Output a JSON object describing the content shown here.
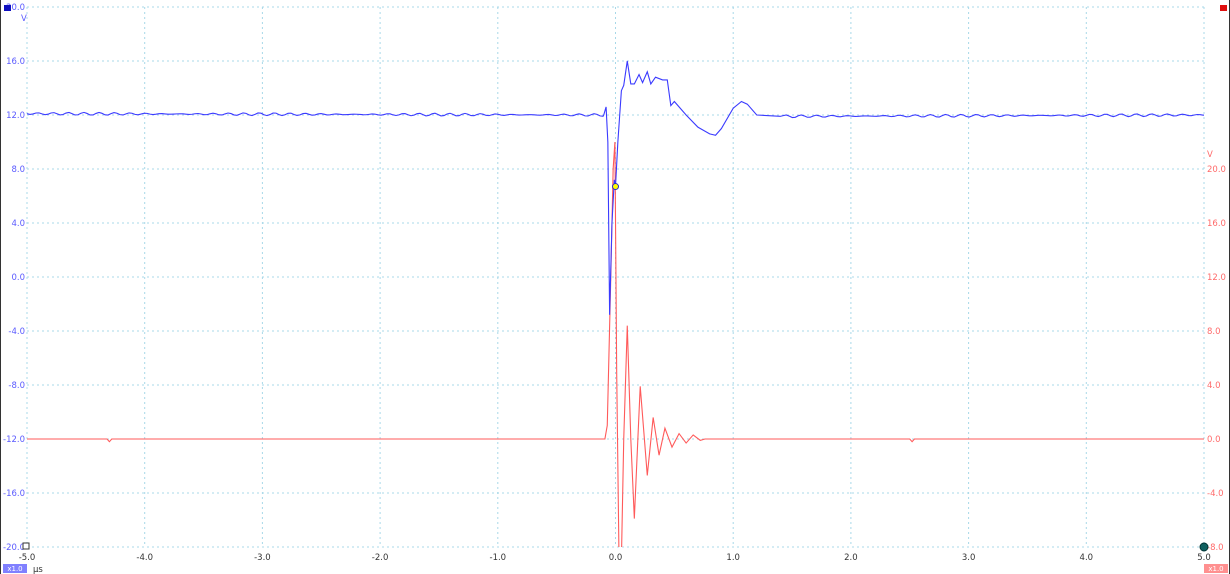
{
  "chart_data": {
    "type": "line",
    "x_unit": "µs",
    "xlim": [
      -5.0,
      5.0
    ],
    "x_ticks": [
      "-5.0",
      "-4.0",
      "-3.0",
      "-2.0",
      "-1.0",
      "0.0",
      "1.0",
      "2.0",
      "3.0",
      "4.0",
      "5.0"
    ],
    "grid": true,
    "axes": [
      {
        "side": "left",
        "unit": "V",
        "ylim": [
          -20,
          20
        ],
        "color": "#5a5aff",
        "ticks": [
          "20.0",
          "16.0",
          "12.0",
          "8.0",
          "4.0",
          "0.0",
          "-4.0",
          "-8.0",
          "-12.0",
          "-16.0",
          "-20.0"
        ],
        "zoom_badge": "x1.0"
      },
      {
        "side": "right",
        "unit": "V",
        "ylim": [
          -8,
          32
        ],
        "color": "#ff6a6a",
        "ticks": [
          "20.0",
          "16.0",
          "12.0",
          "8.0",
          "4.0",
          "0.0",
          "-4.0",
          "-8.0"
        ],
        "zoom_badge": "x1.0"
      }
    ],
    "series": [
      {
        "axis": "left",
        "color": "#3a3aff",
        "points": [
          [
            -5,
            12.1
          ],
          [
            -0.1,
            12
          ],
          [
            -0.08,
            12.6
          ],
          [
            -0.065,
            10
          ],
          [
            -0.05,
            -2.8
          ],
          [
            -0.03,
            4
          ],
          [
            -0.01,
            7.2
          ],
          [
            0,
            6.7
          ],
          [
            0.02,
            10
          ],
          [
            0.05,
            13.8
          ],
          [
            0.07,
            14.2
          ],
          [
            0.1,
            16
          ],
          [
            0.13,
            14.3
          ],
          [
            0.16,
            14.3
          ],
          [
            0.2,
            15
          ],
          [
            0.23,
            14.4
          ],
          [
            0.27,
            15.2
          ],
          [
            0.3,
            14.3
          ],
          [
            0.34,
            14.8
          ],
          [
            0.4,
            14.6
          ],
          [
            0.44,
            14.6
          ],
          [
            0.47,
            12.7
          ],
          [
            0.5,
            13
          ],
          [
            0.6,
            12
          ],
          [
            0.7,
            11.1
          ],
          [
            0.8,
            10.6
          ],
          [
            0.85,
            10.5
          ],
          [
            0.9,
            11
          ],
          [
            1.0,
            12.5
          ],
          [
            1.07,
            13
          ],
          [
            1.12,
            12.8
          ],
          [
            1.2,
            12
          ],
          [
            1.4,
            11.9
          ],
          [
            5,
            12
          ]
        ]
      },
      {
        "axis": "right",
        "color": "#ff5a5a",
        "points": [
          [
            -5,
            0
          ],
          [
            -4.32,
            0
          ],
          [
            -4.3,
            -0.2
          ],
          [
            -4.28,
            0
          ],
          [
            -0.09,
            0
          ],
          [
            -0.07,
            1
          ],
          [
            -0.04,
            12
          ],
          [
            -0.02,
            20
          ],
          [
            -0.005,
            22
          ],
          [
            0.01,
            5
          ],
          [
            0.03,
            -9
          ],
          [
            0.05,
            -9
          ],
          [
            0.07,
            0
          ],
          [
            0.1,
            8.4
          ],
          [
            0.13,
            0
          ],
          [
            0.16,
            -5.9
          ],
          [
            0.19,
            0
          ],
          [
            0.21,
            3.9
          ],
          [
            0.27,
            -2.7
          ],
          [
            0.32,
            1.6
          ],
          [
            0.37,
            -1.2
          ],
          [
            0.42,
            0.8
          ],
          [
            0.48,
            -0.6
          ],
          [
            0.54,
            0.4
          ],
          [
            0.6,
            -0.3
          ],
          [
            0.66,
            0.3
          ],
          [
            0.72,
            -0.1
          ],
          [
            0.76,
            0
          ],
          [
            2.5,
            0
          ],
          [
            2.52,
            -0.2
          ],
          [
            2.54,
            0
          ],
          [
            5,
            0
          ]
        ]
      }
    ],
    "trigger": {
      "t": 0.0,
      "v": 6.7,
      "color": "#ffff00"
    }
  }
}
